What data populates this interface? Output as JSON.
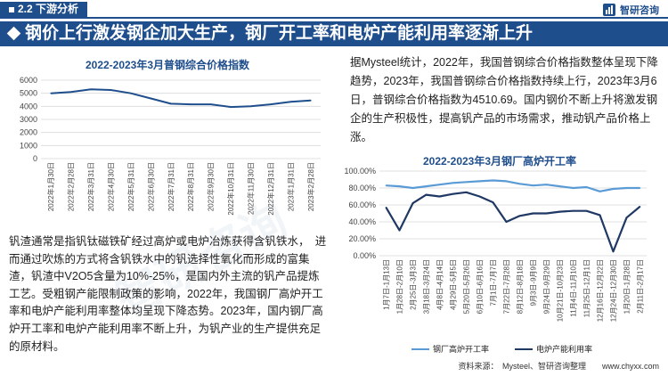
{
  "header": {
    "section": "2.2 下游分析",
    "logo_text": "智研咨询",
    "title": "钢价上行激发钢企加大生产，钢厂开工率和电炉产能利用率逐渐上升"
  },
  "watermark": "智研咨询",
  "text": {
    "right_paragraph": "据Mysteel统计，2022年，我国普钢综合价格指数整体呈现下降趋势，2023年，我国普钢综合价格指数持续上行，2023年3月6日，普钢综合价格指数为4510.69。国内钢价不断上升将激发钢企的生产积极性，提高钒产品的市场需求，推动钒产品价格上涨。",
    "left_paragraph": "钒渣通常是指钒钛磁铁矿经过高炉或电炉冶炼获得含钒铁水，　进而通过吹炼的方式将含钒铁水中的钒选择性氧化而形成的富集渣，钒渣中V2O5含量为10%-25%，是国内外主流的钒产品提炼工艺。受粗钢产能限制政策的影响，2022年，我国钢厂高炉开工率和电炉产能利用率整体均呈现下降态势。2023年，国内钢厂高炉开工率和电炉产能利用率不断上升，为钒产业的生产提供充足的原材料。",
    "source": "资料来源：　Mysteel、智研咨询整理　　www.chyxx.com"
  },
  "colors": {
    "brand": "#1f4e8c",
    "series_light": "#5b9bd5",
    "series_dark": "#1f3864"
  },
  "chart_data": [
    {
      "type": "line",
      "title": "2022-2023年3月普钢综合价格指数",
      "ylim": [
        0,
        6000
      ],
      "yticks": [
        "0",
        "1000",
        "2000",
        "3000",
        "4000",
        "5000",
        "6000"
      ],
      "categories": [
        "2022年1月30日",
        "2022年2月28日",
        "2022年3月31日",
        "2022年4月30日",
        "2022年5月31日",
        "2022年6月30日",
        "2022年7月31日",
        "2022年8月31日",
        "2022年9月30日",
        "2022年10月31日",
        "2022年11月30日",
        "2022年12月31日",
        "2023年1月31日",
        "2023年2月28日"
      ],
      "series": [
        {
          "values": [
            5000,
            5100,
            5300,
            5250,
            5000,
            4600,
            4200,
            4150,
            4150,
            3950,
            4000,
            4150,
            4350,
            4450
          ]
        }
      ]
    },
    {
      "type": "line",
      "title": "2022-2023年3月钢厂高炉开工率",
      "ylim": [
        0,
        100
      ],
      "yticks": [
        "0.00%",
        "20.00%",
        "40.00%",
        "60.00%",
        "80.00%",
        "100.00%"
      ],
      "categories": [
        "1月7日-1月13日",
        "1月28日-2月10日",
        "2月25日-3月3日",
        "3月18日-3月24日",
        "4月8日-4月14日",
        "4月29日-5月5日",
        "5月20日-5月26日",
        "6月10日-6月16日",
        "7月1日-7月7日",
        "7月22日-7月28日",
        "8月12日-8月18日",
        "9月3日-9月9日",
        "9月24日-9月29日",
        "10月21日-10月23日",
        "11月4日-11月10日",
        "11月25日-12月1日",
        "12月16日-12月22日",
        "12月24日-12月30日",
        "1月20日-1月28日",
        "2月11日-2月17日"
      ],
      "series": [
        {
          "name": "钢厂高炉开工率",
          "values": [
            83,
            82,
            80,
            82,
            84,
            86,
            87,
            88,
            89,
            88,
            85,
            83,
            84,
            82,
            80,
            81,
            76,
            79,
            80,
            80
          ]
        },
        {
          "name": "电炉产能利用率",
          "values": [
            57,
            30,
            62,
            72,
            70,
            73,
            75,
            70,
            63,
            40,
            47,
            50,
            50,
            52,
            53,
            53,
            48,
            5,
            45,
            58
          ]
        }
      ]
    }
  ]
}
